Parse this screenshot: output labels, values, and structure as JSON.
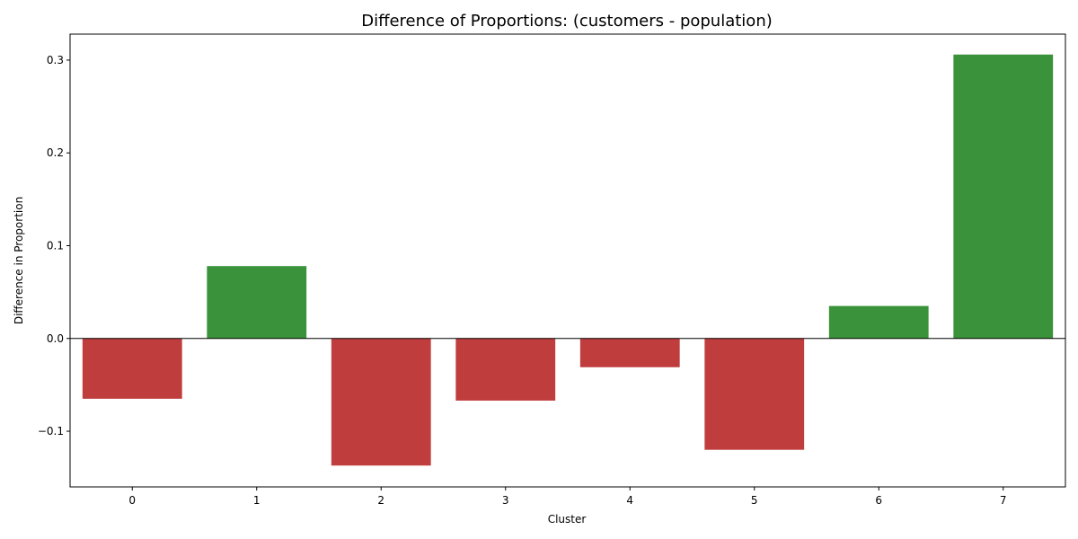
{
  "chart_data": {
    "type": "bar",
    "title": "Difference of Proportions: (customers - population)",
    "xlabel": "Cluster",
    "ylabel": "Difference in Proportion",
    "categories": [
      "0",
      "1",
      "2",
      "3",
      "4",
      "5",
      "6",
      "7"
    ],
    "values": [
      -0.065,
      0.078,
      -0.137,
      -0.067,
      -0.031,
      -0.12,
      0.035,
      0.306
    ],
    "ylim": [
      -0.16,
      0.328
    ],
    "yticks": [
      -0.1,
      0.0,
      0.1,
      0.2,
      0.3
    ],
    "ytick_labels": [
      "−0.1",
      "0.0",
      "0.1",
      "0.2",
      "0.3"
    ],
    "grid": false,
    "zero_line": true,
    "colors": {
      "positive": "#3a923a",
      "negative": "#c03d3e"
    }
  }
}
